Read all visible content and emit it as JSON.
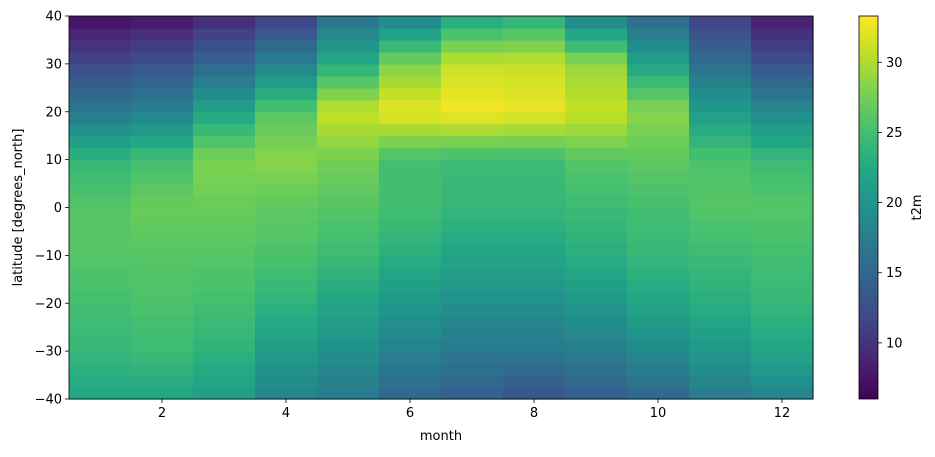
{
  "chart_data": {
    "type": "heatmap",
    "xlabel": "month",
    "ylabel": "latitude [degrees_north]",
    "colorbar_label": "t2m",
    "colormap": "viridis",
    "x": [
      1,
      2,
      3,
      4,
      5,
      6,
      7,
      8,
      9,
      10,
      11,
      12
    ],
    "xlim": [
      0.5,
      12.5
    ],
    "ylim": [
      -40,
      40
    ],
    "x_ticks": [
      2,
      4,
      6,
      8,
      10,
      12
    ],
    "x_tick_labels": [
      "2",
      "4",
      "6",
      "8",
      "10",
      "12"
    ],
    "y_ticks": [
      -40,
      -30,
      -20,
      -10,
      0,
      10,
      20,
      30,
      40
    ],
    "y_tick_labels": [
      "−40",
      "−30",
      "−20",
      "−10",
      "0",
      "10",
      "20",
      "30",
      "40"
    ],
    "color_range": [
      6,
      33.3
    ],
    "colorbar_ticks": [
      10,
      15,
      20,
      25,
      30
    ],
    "colorbar_tick_labels": [
      "10",
      "15",
      "20",
      "25",
      "30"
    ],
    "grid": false,
    "series": [
      {
        "month": 1,
        "lat": [
          -40,
          -30,
          -20,
          -10,
          0,
          10,
          20,
          30,
          40
        ],
        "t2m": [
          22,
          24,
          25,
          26,
          26,
          24,
          17,
          12,
          7
        ]
      },
      {
        "month": 2,
        "lat": [
          -40,
          -30,
          -20,
          -10,
          0,
          10,
          20,
          30,
          40
        ],
        "t2m": [
          22,
          24.5,
          25.5,
          26,
          27,
          25,
          18,
          13,
          7.5
        ]
      },
      {
        "month": 3,
        "lat": [
          -40,
          -30,
          -20,
          -10,
          0,
          10,
          20,
          30,
          40
        ],
        "t2m": [
          21,
          23.5,
          25,
          26,
          27,
          28,
          22,
          15,
          9
        ]
      },
      {
        "month": 4,
        "lat": [
          -40,
          -30,
          -20,
          -10,
          0,
          10,
          20,
          30,
          40
        ],
        "t2m": [
          18,
          21,
          23.5,
          25.5,
          26.5,
          28.5,
          26,
          18,
          11
        ]
      },
      {
        "month": 5,
        "lat": [
          -40,
          -30,
          -20,
          -10,
          0,
          10,
          20,
          30,
          40
        ],
        "t2m": [
          17,
          19.5,
          22,
          24.5,
          26,
          27.5,
          31,
          23,
          16
        ]
      },
      {
        "month": 6,
        "lat": [
          -40,
          -30,
          -20,
          -10,
          0,
          10,
          20,
          30,
          40
        ],
        "t2m": [
          15,
          18,
          20.5,
          23,
          25,
          25,
          32.5,
          28,
          18
        ]
      },
      {
        "month": 7,
        "lat": [
          -40,
          -30,
          -20,
          -10,
          0,
          10,
          20,
          30,
          40
        ],
        "t2m": [
          14,
          17,
          19.5,
          22,
          24,
          24.5,
          33,
          31,
          22
        ]
      },
      {
        "month": 8,
        "lat": [
          -40,
          -30,
          -20,
          -10,
          0,
          10,
          20,
          30,
          40
        ],
        "t2m": [
          13,
          17,
          19.5,
          22,
          24,
          24.5,
          32.5,
          31,
          23
        ]
      },
      {
        "month": 9,
        "lat": [
          -40,
          -30,
          -20,
          -10,
          0,
          10,
          20,
          30,
          40
        ],
        "t2m": [
          14,
          17.5,
          20.5,
          23,
          24.5,
          26,
          31,
          29,
          18
        ]
      },
      {
        "month": 10,
        "lat": [
          -40,
          -30,
          -20,
          -10,
          0,
          10,
          20,
          30,
          40
        ],
        "t2m": [
          15,
          19,
          22,
          24,
          25,
          26.5,
          28.5,
          22,
          15
        ]
      },
      {
        "month": 11,
        "lat": [
          -40,
          -30,
          -20,
          -10,
          0,
          10,
          20,
          30,
          40
        ],
        "t2m": [
          17,
          20.5,
          23,
          24.5,
          26,
          25.5,
          21,
          16,
          11
        ]
      },
      {
        "month": 12,
        "lat": [
          -40,
          -30,
          -20,
          -10,
          0,
          10,
          20,
          30,
          40
        ],
        "t2m": [
          18,
          22,
          24,
          25,
          26,
          24.5,
          19,
          13,
          8
        ]
      }
    ]
  }
}
